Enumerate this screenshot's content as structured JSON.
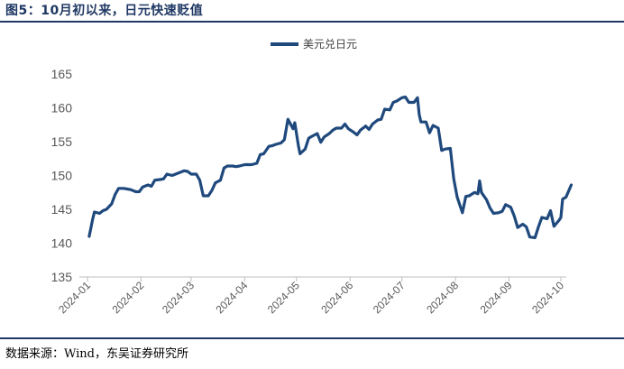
{
  "figure": {
    "title": "图5：10月初以来，日元快速贬值",
    "source": "数据来源：Wind，东吴证券研究所"
  },
  "colors": {
    "series": "#1f497d",
    "axis": "#bfbfbf",
    "rule": "#1f3864"
  },
  "chart_data": {
    "type": "line",
    "title": "",
    "xlabel": "",
    "ylabel": "",
    "ylim": [
      135,
      165
    ],
    "yticks": [
      135,
      140,
      145,
      150,
      155,
      160,
      165
    ],
    "xticks": [
      "2024-01",
      "2024-02",
      "2024-03",
      "2024-04",
      "2024-05",
      "2024-06",
      "2024-07",
      "2024-08",
      "2024-09",
      "2024-10"
    ],
    "grid": false,
    "legend_position": "top-center",
    "series": [
      {
        "name": "美元兑日元",
        "x": [
          "2024-01-02",
          "2024-01-04",
          "2024-01-05",
          "2024-01-08",
          "2024-01-10",
          "2024-01-12",
          "2024-01-15",
          "2024-01-17",
          "2024-01-19",
          "2024-01-22",
          "2024-01-24",
          "2024-01-26",
          "2024-01-29",
          "2024-01-31",
          "2024-02-02",
          "2024-02-05",
          "2024-02-07",
          "2024-02-09",
          "2024-02-12",
          "2024-02-14",
          "2024-02-16",
          "2024-02-19",
          "2024-02-21",
          "2024-02-23",
          "2024-02-26",
          "2024-02-28",
          "2024-03-01",
          "2024-03-04",
          "2024-03-06",
          "2024-03-08",
          "2024-03-11",
          "2024-03-13",
          "2024-03-15",
          "2024-03-18",
          "2024-03-20",
          "2024-03-22",
          "2024-03-25",
          "2024-03-27",
          "2024-03-29",
          "2024-04-01",
          "2024-04-03",
          "2024-04-05",
          "2024-04-08",
          "2024-04-10",
          "2024-04-12",
          "2024-04-15",
          "2024-04-17",
          "2024-04-19",
          "2024-04-22",
          "2024-04-24",
          "2024-04-26",
          "2024-04-29",
          "2024-04-30",
          "2024-05-02",
          "2024-05-03",
          "2024-05-06",
          "2024-05-08",
          "2024-05-10",
          "2024-05-13",
          "2024-05-15",
          "2024-05-17",
          "2024-05-20",
          "2024-05-22",
          "2024-05-24",
          "2024-05-27",
          "2024-05-29",
          "2024-05-31",
          "2024-06-03",
          "2024-06-05",
          "2024-06-07",
          "2024-06-10",
          "2024-06-12",
          "2024-06-14",
          "2024-06-17",
          "2024-06-19",
          "2024-06-21",
          "2024-06-24",
          "2024-06-26",
          "2024-06-28",
          "2024-07-01",
          "2024-07-03",
          "2024-07-05",
          "2024-07-08",
          "2024-07-10",
          "2024-07-11",
          "2024-07-12",
          "2024-07-15",
          "2024-07-17",
          "2024-07-19",
          "2024-07-22",
          "2024-07-24",
          "2024-07-26",
          "2024-07-29",
          "2024-07-31",
          "2024-08-02",
          "2024-08-05",
          "2024-08-07",
          "2024-08-09",
          "2024-08-12",
          "2024-08-14",
          "2024-08-15",
          "2024-08-16",
          "2024-08-19",
          "2024-08-21",
          "2024-08-23",
          "2024-08-26",
          "2024-08-28",
          "2024-08-30",
          "2024-09-02",
          "2024-09-04",
          "2024-09-06",
          "2024-09-09",
          "2024-09-11",
          "2024-09-13",
          "2024-09-16",
          "2024-09-18",
          "2024-09-20",
          "2024-09-23",
          "2024-09-25",
          "2024-09-27",
          "2024-09-30",
          "2024-10-01",
          "2024-10-02",
          "2024-10-04",
          "2024-10-07"
        ],
        "values": [
          141.0,
          143.5,
          144.6,
          144.4,
          144.8,
          145.0,
          145.8,
          147.2,
          148.1,
          148.1,
          148.0,
          147.9,
          147.6,
          147.6,
          148.3,
          148.6,
          148.4,
          149.3,
          149.4,
          149.5,
          150.2,
          150.0,
          150.2,
          150.4,
          150.7,
          150.6,
          150.2,
          150.2,
          149.3,
          147.0,
          147.0,
          147.8,
          148.9,
          149.3,
          151.1,
          151.4,
          151.4,
          151.3,
          151.4,
          151.6,
          151.6,
          151.6,
          151.8,
          153.1,
          153.2,
          154.3,
          154.4,
          154.6,
          154.8,
          155.3,
          158.3,
          156.9,
          157.8,
          154.5,
          153.2,
          153.9,
          155.5,
          155.8,
          156.2,
          154.9,
          155.7,
          156.2,
          156.7,
          157.0,
          157.0,
          157.6,
          156.9,
          156.4,
          156.0,
          156.7,
          157.3,
          156.8,
          157.6,
          158.2,
          158.3,
          159.8,
          159.7,
          160.8,
          161.0,
          161.5,
          161.6,
          160.8,
          160.8,
          161.5,
          159.0,
          157.9,
          157.9,
          156.3,
          157.4,
          157.0,
          153.7,
          153.9,
          154.0,
          149.5,
          146.8,
          144.5,
          146.9,
          147.0,
          147.5,
          147.3,
          149.2,
          147.5,
          146.4,
          145.2,
          144.4,
          144.5,
          144.7,
          145.7,
          145.3,
          144.0,
          142.3,
          142.8,
          142.4,
          140.9,
          140.8,
          142.4,
          143.8,
          143.6,
          144.8,
          142.5,
          143.4,
          143.8,
          146.5,
          146.8,
          148.6
        ]
      }
    ]
  }
}
